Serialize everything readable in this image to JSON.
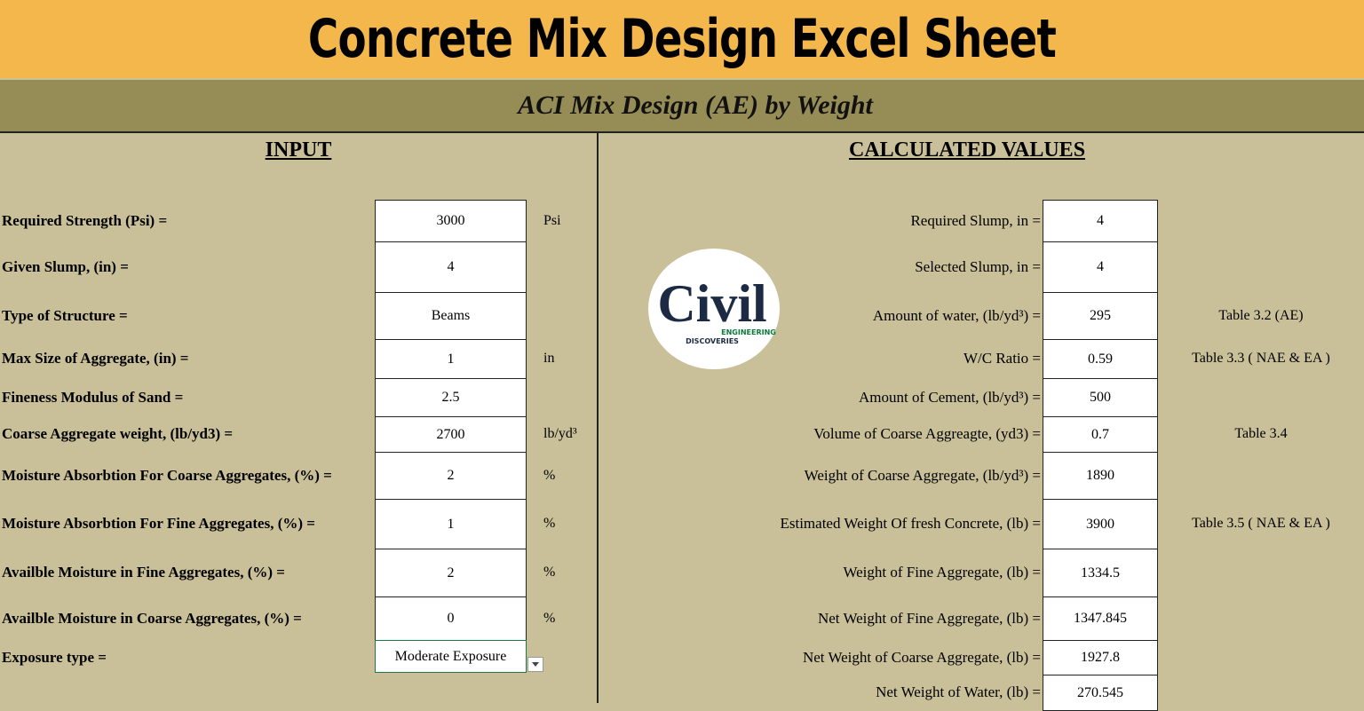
{
  "banner": {
    "title": "Concrete Mix Design Excel Sheet"
  },
  "sheet": {
    "title": "ACI Mix Design (AE) by Weight",
    "input": {
      "heading": "INPUT",
      "rows": [
        {
          "label": "Required Strength  (Psi) =",
          "value": "3000",
          "unit": "Psi"
        },
        {
          "label": "Given Slump, (in)  =",
          "value": "4"
        },
        {
          "label": "Type of Structure =",
          "value": "Beams"
        },
        {
          "label": "Max Size of Aggregate, (in)  =",
          "value": "1",
          "unit": "in"
        },
        {
          "label": "Fineness Modulus of Sand =",
          "value": "2.5"
        },
        {
          "label": "Coarse Aggregate weight, (lb/yd3)  =",
          "value": "2700",
          "unit": "lb/yd³"
        },
        {
          "label": "Moisture Absorbtion For Coarse Aggregates, (%) =",
          "value": "2",
          "unit": "%"
        },
        {
          "label": "Moisture Absorbtion  For Fine Aggregates, (%) =",
          "value": "1",
          "unit": "%"
        },
        {
          "label": "Availble Moisture in Fine Aggregates, (%) =",
          "value": "2",
          "unit": "%"
        },
        {
          "label": "Availble Moisture in Coarse Aggregates, (%) =",
          "value": "0",
          "unit": "%"
        },
        {
          "label": "Exposure type =",
          "value": "Moderate Exposure"
        }
      ]
    },
    "calculated": {
      "heading": "CALCULATED VALUES",
      "rows": [
        {
          "label": "Required Slump, in  =",
          "value": "4"
        },
        {
          "label": "Selected Slump, in  =",
          "value": "4"
        },
        {
          "label": "Amount of water, (lb/yd³)  =",
          "value": "295",
          "note": "Table 3.2  (AE)"
        },
        {
          "label": "W/C Ratio  =",
          "value": "0.59",
          "note": "Table 3.3 ( NAE & EA )"
        },
        {
          "label": "Amount of Cement, (lb/yd³) =",
          "value": "500"
        },
        {
          "label": "Volume of Coarse Aggreagte, (yd3)  =",
          "value": "0.7",
          "note": "Table 3.4"
        },
        {
          "label": "Weight of Coarse Aggregate, (lb/yd³)  =",
          "value": "1890"
        },
        {
          "label": "Estimated Weight Of fresh Concrete, (lb)  =",
          "value": "3900",
          "note": "Table 3.5 ( NAE & EA )"
        },
        {
          "label": "Weight of Fine Aggregate, (lb)  =",
          "value": "1334.5"
        },
        {
          "label": "Net Weight of Fine Aggregate, (lb)  =",
          "value": "1347.845"
        },
        {
          "label": "Net Weight of Coarse Aggregate, (lb)  =",
          "value": "1927.8"
        },
        {
          "label": "Net Weight of Water, (lb)  =",
          "value": "270.545"
        }
      ]
    }
  },
  "logo": {
    "word": "Civil",
    "line1": "ENGINEERING",
    "line2": "DISCOVERIES"
  }
}
